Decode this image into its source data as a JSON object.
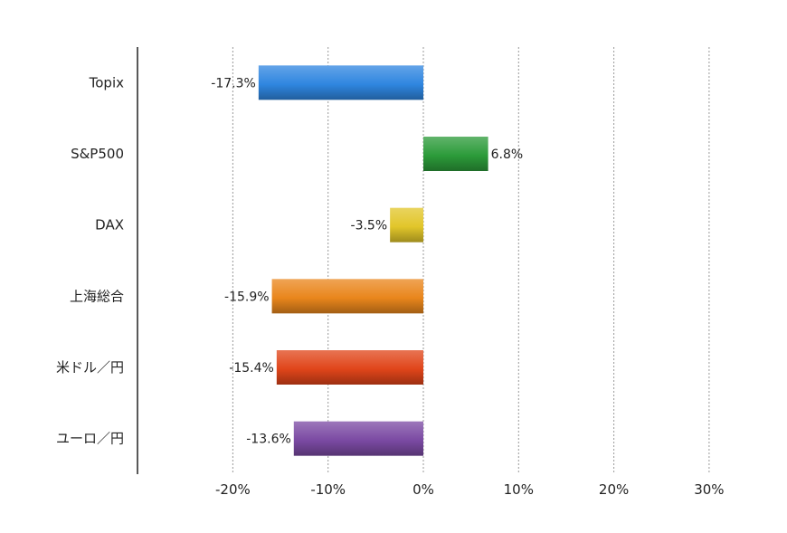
{
  "chart_data": {
    "type": "bar",
    "orientation": "horizontal",
    "categories": [
      "Topix",
      "S&P500",
      "DAX",
      "上海総合",
      "米ドル／円",
      "ユーロ／円"
    ],
    "values": [
      -17.3,
      6.8,
      -3.5,
      -15.9,
      -15.4,
      -13.6
    ],
    "data_labels": [
      "-17.3%",
      "6.8%",
      "-3.5%",
      "-15.9%",
      "-15.4%",
      "-13.6%"
    ],
    "colors": [
      "#2f86e0",
      "#2c9b3a",
      "#e2c62a",
      "#e9861c",
      "#e0451a",
      "#7b4aa3"
    ],
    "xlim": [
      -28,
      30
    ],
    "xticks": [
      -20,
      -10,
      0,
      10,
      20,
      30
    ],
    "xtick_labels": [
      "-20%",
      "-10%",
      "0%",
      "10%",
      "20%",
      "30%"
    ],
    "grid": "vertical dotted",
    "legend": "none",
    "title": "",
    "xlabel": "",
    "ylabel": ""
  }
}
